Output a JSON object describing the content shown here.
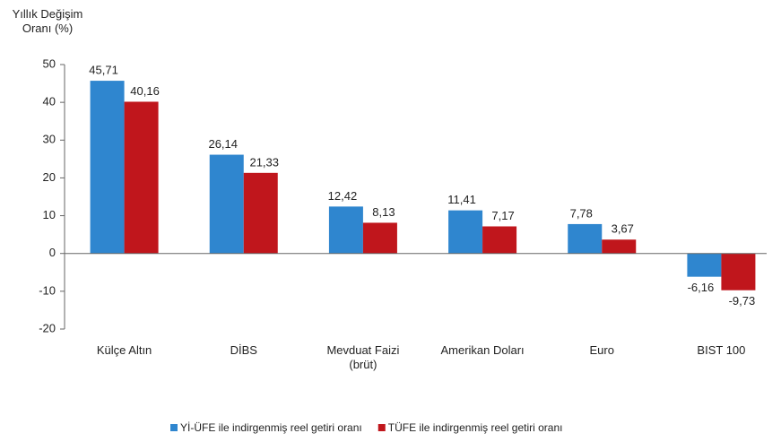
{
  "chart_data": {
    "type": "bar",
    "y_label": "Yıllık Değişim\nOranı (%)",
    "categories": [
      "Külçe Altın",
      "DİBS",
      "Mevduat Faizi\n(brüt)",
      "Amerikan Doları",
      "Euro",
      "BIST 100"
    ],
    "series": [
      {
        "name": "Yİ-ÜFE ile indirgenmiş reel getiri oranı",
        "color": "#2f86cf",
        "values": [
          45.71,
          26.14,
          12.42,
          11.41,
          7.78,
          -6.16
        ],
        "value_labels": [
          "45,71",
          "26,14",
          "12,42",
          "11,41",
          "7,78",
          "-6,16"
        ]
      },
      {
        "name": "TÜFE ile indirgenmiş reel getiri oranı",
        "color": "#c0161c",
        "values": [
          40.16,
          21.33,
          8.13,
          7.17,
          3.67,
          -9.73
        ],
        "value_labels": [
          "40,16",
          "21,33",
          "8,13",
          "7,17",
          "3,67",
          "-9,73"
        ]
      }
    ],
    "ylim": [
      -20,
      50
    ],
    "yticks": [
      -20,
      -10,
      0,
      10,
      20,
      30,
      40,
      50
    ],
    "grid": false,
    "legend": "bottom"
  }
}
